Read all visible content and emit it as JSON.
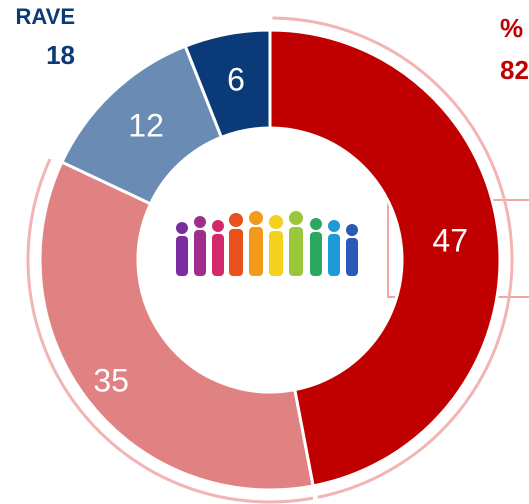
{
  "chart_data": {
    "type": "donut",
    "categories": [
      null,
      null,
      null,
      null
    ],
    "values": [
      47,
      35,
      12,
      6
    ],
    "colors": [
      "#c00000",
      "#e08282",
      "#6a8cb4",
      "#0b3a78"
    ],
    "annotations": [
      {
        "text": "RAVE",
        "value": 18
      },
      {
        "text": "%",
        "value": 82
      }
    ]
  }
}
